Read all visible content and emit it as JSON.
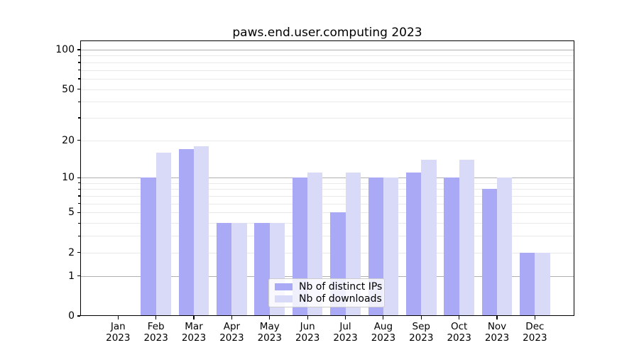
{
  "chart_data": {
    "type": "bar",
    "title": "paws.end.user.computing 2023",
    "categories": [
      "Jan",
      "Feb",
      "Mar",
      "Apr",
      "May",
      "Jun",
      "Jul",
      "Aug",
      "Sep",
      "Oct",
      "Nov",
      "Dec"
    ],
    "category_year": "2023",
    "series": [
      {
        "name": "Nb of distinct IPs",
        "color": "#a9a9f5",
        "values": [
          0,
          10,
          17,
          4,
          4,
          10,
          5,
          10,
          11,
          10,
          8,
          2
        ]
      },
      {
        "name": "Nb of downloads",
        "color": "#d9d9f8",
        "values": [
          0,
          16,
          18,
          4,
          4,
          11,
          11,
          10,
          14,
          14,
          10,
          2
        ]
      }
    ],
    "yscale": "log1p",
    "ylim": [
      0,
      116
    ],
    "ytick_labels": [
      0,
      1,
      2,
      5,
      10,
      20,
      50,
      100
    ],
    "grid": "both",
    "grid_major_values": [
      1,
      10,
      100
    ],
    "grid_minor_values": [
      2,
      3,
      4,
      5,
      6,
      7,
      8,
      9,
      20,
      30,
      40,
      50,
      60,
      70,
      80,
      90
    ],
    "legend_position": "lower-center"
  },
  "colors": {
    "major_grid": "#b0b0b0",
    "minor_grid": "#e9e9e9",
    "spine": "#000000",
    "legend_border": "#cccccc",
    "background": "#ffffff"
  }
}
